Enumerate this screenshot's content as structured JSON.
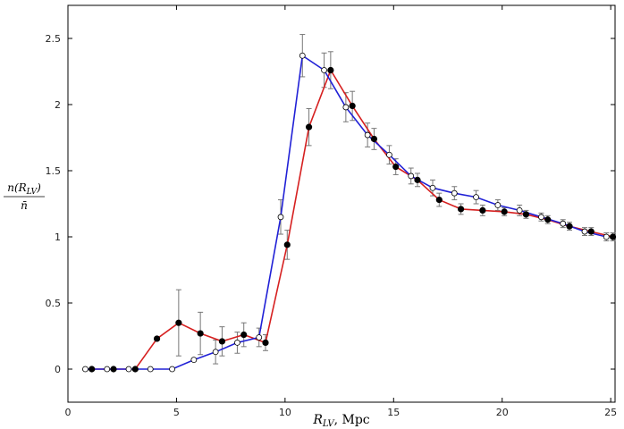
{
  "chart_data": {
    "type": "line",
    "xlabel": "R_{LV}, Mpc",
    "xlabel_main": "R",
    "xlabel_sub": "LV",
    "xlabel_unit": ", Mpc",
    "ylabel_numerator": "n(R_{LV})",
    "ylabel_numerator_main": "n(R",
    "ylabel_numerator_sub": "LV",
    "ylabel_numerator_close": ")",
    "ylabel_denominator": "n̄",
    "xlim": [
      0,
      25.2
    ],
    "ylim": [
      -0.25,
      2.75
    ],
    "xticks": [
      0,
      5,
      10,
      15,
      20,
      25
    ],
    "xtick_labels": [
      "0",
      "5",
      "10",
      "15",
      "20",
      "25"
    ],
    "yticks": [
      0,
      0.5,
      1,
      1.5,
      2,
      2.5
    ],
    "ytick_labels": [
      "0",
      "0.5",
      "1",
      "1.5",
      "2",
      "2.5"
    ],
    "grid": false,
    "series": [
      {
        "color": "#d62020",
        "marker": "filled-circle",
        "x": [
          1.1,
          2.1,
          3.1,
          4.1,
          5.1,
          6.1,
          7.1,
          8.1,
          9.1,
          10.1,
          11.1,
          12.1,
          13.1,
          14.1,
          15.1,
          16.1,
          17.1,
          18.1,
          19.1,
          20.1,
          21.1,
          22.1,
          23.1,
          24.1,
          25.1
        ],
        "y": [
          0,
          0,
          0,
          0.23,
          0.35,
          0.27,
          0.21,
          0.26,
          0.2,
          0.94,
          1.83,
          2.26,
          1.99,
          1.74,
          1.53,
          1.43,
          1.28,
          1.21,
          1.2,
          1.19,
          1.17,
          1.13,
          1.08,
          1.04,
          1.0
        ],
        "err": [
          0,
          0,
          0,
          0,
          0.25,
          0.16,
          0.11,
          0.09,
          0.06,
          0.11,
          0.14,
          0.14,
          0.11,
          0.08,
          0.06,
          0.05,
          0.05,
          0.04,
          0.04,
          0.03,
          0.03,
          0.03,
          0.03,
          0.03,
          0.03
        ]
      },
      {
        "color": "#2020d6",
        "marker": "open-circle",
        "x": [
          0.8,
          1.8,
          2.8,
          3.8,
          4.8,
          5.8,
          6.8,
          7.8,
          8.8,
          9.8,
          10.8,
          11.8,
          12.8,
          13.8,
          14.8,
          15.8,
          16.8,
          17.8,
          18.8,
          19.8,
          20.8,
          21.8,
          22.8,
          23.8,
          24.8
        ],
        "y": [
          0,
          0,
          0,
          0,
          0,
          0.07,
          0.13,
          0.2,
          0.24,
          1.15,
          2.37,
          2.26,
          1.98,
          1.77,
          1.62,
          1.46,
          1.37,
          1.33,
          1.3,
          1.24,
          1.2,
          1.15,
          1.1,
          1.04,
          1.0
        ],
        "err": [
          0,
          0,
          0,
          0,
          0,
          0,
          0.09,
          0.08,
          0.07,
          0.13,
          0.16,
          0.13,
          0.11,
          0.09,
          0.07,
          0.06,
          0.06,
          0.05,
          0.05,
          0.04,
          0.04,
          0.03,
          0.03,
          0.03,
          0.03
        ]
      }
    ]
  }
}
